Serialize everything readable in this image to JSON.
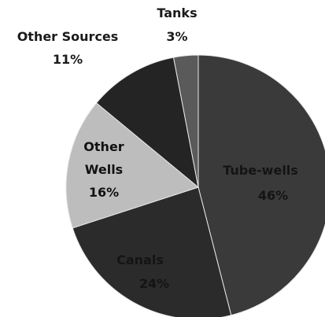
{
  "chart_data": {
    "type": "pie",
    "title": "",
    "slices": [
      {
        "name": "Tube-wells",
        "value": 46,
        "label": "46%",
        "color": "#3a3a3a"
      },
      {
        "name": "Canals",
        "value": 24,
        "label": "24%",
        "color": "#2b2b2b"
      },
      {
        "name": "Other Wells",
        "value": 16,
        "label": "16%",
        "color": "#bdbdbd"
      },
      {
        "name": "Other Sources",
        "value": 11,
        "label": "11%",
        "color": "#242424"
      },
      {
        "name": "Tanks",
        "value": 3,
        "label": "3%",
        "color": "#5a5a5a"
      }
    ],
    "start_angle_deg": 0,
    "direction": "clockwise"
  }
}
